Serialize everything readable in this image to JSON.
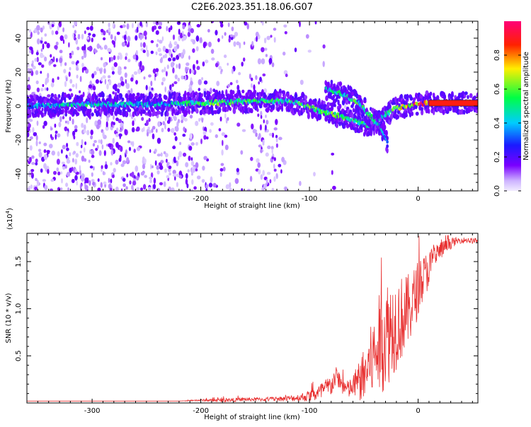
{
  "title": "C2E6.2023.351.18.06.G07",
  "colors": {
    "snr_line": "#e83030",
    "axis": "#000000",
    "colormap": [
      "#f2ecff",
      "#cdb2ff",
      "#7a00ff",
      "#1a1aff",
      "#00ccff",
      "#00ff44",
      "#ffee00",
      "#ff2200",
      "#ff0077"
    ]
  },
  "chart_data": [
    {
      "type": "heatmap",
      "xlabel": "Height of straight line (km)",
      "ylabel": "Frequency (Hz)",
      "xlim": [
        -360,
        55
      ],
      "ylim": [
        -50,
        50
      ],
      "xticks": [
        -300,
        -200,
        -100,
        0
      ],
      "yticks": [
        -40,
        -20,
        0,
        20,
        40
      ],
      "colorbar": {
        "label": "Normalized spectral amplitude",
        "range": [
          0.0,
          1.0
        ],
        "ticks": [
          "0.0",
          "0.2",
          "0.4",
          "0.6",
          "0.8"
        ]
      },
      "ridges": [
        {
          "x": [
            -360,
            -310,
            -280,
            -240,
            -190,
            -150,
            -130,
            -110,
            -90,
            -60,
            -45,
            -30,
            -20,
            -10,
            0,
            10,
            55
          ],
          "y": [
            0,
            1,
            1,
            1,
            2,
            3,
            3,
            2,
            -3,
            -8,
            -12,
            -5,
            -1,
            0,
            1,
            2,
            2
          ],
          "amplitude": [
            0.35,
            0.5,
            0.45,
            0.4,
            0.55,
            0.55,
            0.5,
            0.55,
            0.6,
            0.55,
            0.5,
            0.45,
            0.6,
            0.75,
            0.85,
            0.9,
            0.9
          ]
        },
        {
          "x": [
            -85,
            -70,
            -55,
            -45,
            -35,
            -28
          ],
          "y": [
            10,
            7,
            2,
            -5,
            -12,
            -22
          ],
          "amplitude": [
            0.45,
            0.5,
            0.55,
            0.5,
            0.45,
            0.4
          ]
        }
      ]
    },
    {
      "type": "line",
      "xlabel": "Height of straight line (km)",
      "ylabel": "SNR (10 * v/v)",
      "scale_label": "(x10",
      "scale_exponent": "4",
      "scale_close": ")",
      "xlim": [
        -360,
        55
      ],
      "ylim": [
        0,
        1.8
      ],
      "xticks": [
        -300,
        -200,
        -100,
        0
      ],
      "yticks": [
        0.5,
        1.0,
        1.5
      ],
      "ytick_labels": [
        "0.5",
        "1.0",
        "1.5"
      ],
      "series": [
        {
          "x": [
            -360,
            -340,
            -320,
            -300,
            -280,
            -260,
            -240,
            -220,
            -200,
            -180,
            -160,
            -140,
            -120,
            -110,
            -100,
            -90,
            -80,
            -75,
            -70,
            -65,
            -60,
            -55,
            -50,
            -45,
            -40,
            -35,
            -30,
            -25,
            -20,
            -15,
            -10,
            -5,
            0,
            5,
            10,
            15,
            20,
            25,
            30,
            35,
            40,
            45,
            50,
            55
          ],
          "values": [
            0.02,
            0.02,
            0.02,
            0.02,
            0.02,
            0.02,
            0.02,
            0.02,
            0.03,
            0.03,
            0.04,
            0.04,
            0.05,
            0.06,
            0.08,
            0.12,
            0.2,
            0.3,
            0.2,
            0.15,
            0.18,
            0.25,
            0.3,
            0.45,
            0.55,
            0.7,
            0.8,
            0.85,
            0.9,
            0.95,
            1.0,
            1.1,
            1.25,
            1.35,
            1.45,
            1.55,
            1.62,
            1.66,
            1.7,
            1.72,
            1.73,
            1.73,
            1.72,
            1.73
          ],
          "noise": [
            0,
            0,
            0,
            0,
            0,
            0,
            0,
            0,
            0.01,
            0.02,
            0.02,
            0.02,
            0.03,
            0.04,
            0.06,
            0.1,
            0.12,
            0.1,
            0.1,
            0.1,
            0.12,
            0.2,
            0.3,
            0.35,
            0.45,
            0.55,
            0.6,
            0.55,
            0.5,
            0.45,
            0.4,
            0.35,
            0.3,
            0.25,
            0.2,
            0.15,
            0.1,
            0.08,
            0.06,
            0.04,
            0.03,
            0.03,
            0.03,
            0.03
          ]
        }
      ]
    }
  ]
}
